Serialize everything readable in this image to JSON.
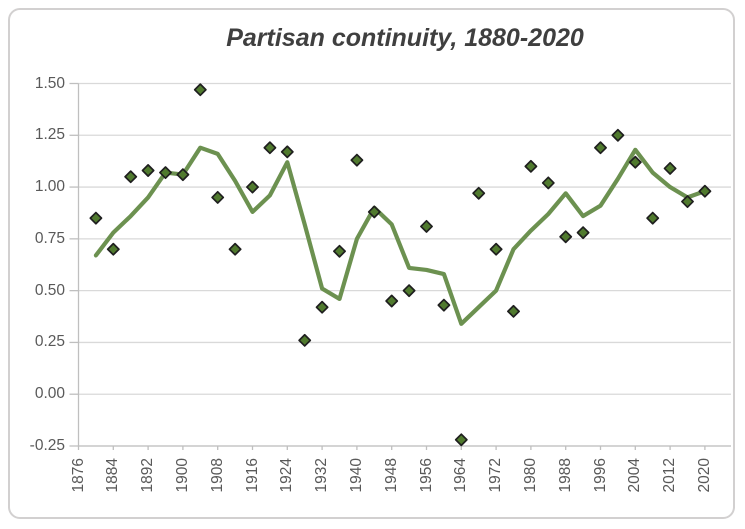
{
  "chart": {
    "title": "Partisan continuity, 1880-2020",
    "colors": {
      "background": "#FFFFFF",
      "border": "#D2D0D0",
      "title_text": "#3F3F3F",
      "label_text": "#595959",
      "gridline": "#D9D9D9",
      "axis_line": "#BFBFBF",
      "trend_line": "#6C9150",
      "marker_fill": "#507A2E",
      "marker_stroke": "#1F1F1F"
    }
  },
  "chart_data": {
    "type": "line",
    "title": "Partisan continuity, 1880-2020",
    "xlabel": "",
    "ylabel": "",
    "grid": true,
    "legend_position": "none",
    "xlim": [
      1876,
      2026
    ],
    "ylim": [
      -0.25,
      1.5
    ],
    "y_tick_labels": [
      "1.50",
      "1.25",
      "1.00",
      "0.75",
      "0.50",
      "0.25",
      "0.00",
      "-0.25"
    ],
    "y_tick_values": [
      1.5,
      1.25,
      1.0,
      0.75,
      0.5,
      0.25,
      0.0,
      -0.25
    ],
    "x_tick_labels": [
      "1876",
      "1884",
      "1892",
      "1900",
      "1908",
      "1916",
      "1924",
      "1932",
      "1940",
      "1948",
      "1956",
      "1964",
      "1972",
      "1980",
      "1988",
      "1996",
      "2004",
      "2012",
      "2020"
    ],
    "x": [
      1880,
      1884,
      1888,
      1892,
      1896,
      1900,
      1904,
      1908,
      1912,
      1916,
      1920,
      1924,
      1928,
      1932,
      1936,
      1940,
      1944,
      1948,
      1952,
      1956,
      1960,
      1964,
      1968,
      1972,
      1976,
      1980,
      1984,
      1988,
      1992,
      1996,
      2000,
      2004,
      2008,
      2012,
      2016,
      2020
    ],
    "series": [
      {
        "name": "diamond_markers",
        "marker": "diamond",
        "line": "none",
        "values": [
          0.85,
          0.7,
          1.05,
          1.08,
          1.07,
          1.06,
          1.47,
          0.95,
          0.7,
          1.0,
          1.19,
          1.17,
          0.26,
          0.42,
          0.69,
          1.13,
          0.88,
          0.45,
          0.5,
          0.81,
          0.43,
          -0.22,
          0.97,
          0.7,
          0.4,
          1.1,
          1.02,
          0.76,
          0.78,
          1.19,
          1.25,
          1.12,
          0.85,
          1.09,
          0.93,
          0.98
        ]
      },
      {
        "name": "trend_line",
        "marker": "none",
        "line": "solid",
        "values": [
          0.67,
          0.78,
          0.86,
          0.95,
          1.07,
          1.06,
          1.19,
          1.16,
          1.03,
          0.88,
          0.96,
          1.12,
          0.82,
          0.51,
          0.46,
          0.75,
          0.9,
          0.82,
          0.61,
          0.6,
          0.58,
          0.34,
          0.42,
          0.5,
          0.7,
          0.79,
          0.87,
          0.97,
          0.86,
          0.91,
          1.04,
          1.18,
          1.07,
          1.0,
          0.95,
          0.98
        ]
      }
    ]
  }
}
